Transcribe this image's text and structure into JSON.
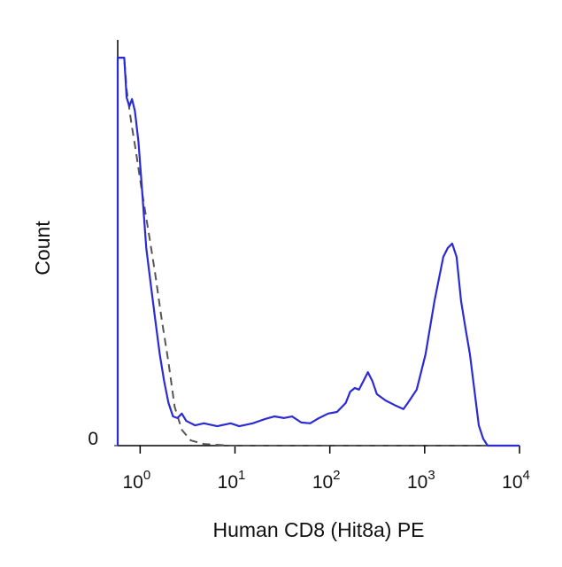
{
  "chart_data": {
    "type": "line",
    "xlabel": "Human CD8 (Hit8a) PE",
    "ylabel": "Count",
    "xscale": "log",
    "xlim": [
      0.58,
      10000
    ],
    "ylim": [
      0,
      100
    ],
    "xticks": [
      {
        "value": 1,
        "label": "10",
        "exponent": "0"
      },
      {
        "value": 10,
        "label": "10",
        "exponent": "1"
      },
      {
        "value": 100,
        "label": "10",
        "exponent": "2"
      },
      {
        "value": 1000,
        "label": "10",
        "exponent": "3"
      },
      {
        "value": 10000,
        "label": "10",
        "exponent": "4"
      }
    ],
    "yticks": [
      0
    ],
    "series": [
      {
        "color": "#2b2bd6",
        "dash": false,
        "x": [
          0.58,
          0.58,
          0.68,
          0.72,
          0.77,
          0.82,
          0.88,
          0.96,
          1.04,
          1.16,
          1.29,
          1.44,
          1.61,
          1.79,
          1.99,
          2.22,
          2.47,
          2.75,
          3.06,
          3.8,
          4.7,
          6.5,
          9.0,
          11.1,
          15.4,
          21,
          26,
          33,
          40,
          50,
          62,
          77,
          96,
          119,
          147,
          164,
          183,
          203,
          226,
          252,
          281,
          313,
          388,
          481,
          597,
          664,
          824,
          1021,
          1268,
          1571,
          1750,
          1950,
          2170,
          2420,
          2690,
          3000,
          3340,
          3720,
          4140,
          4610,
          10000
        ],
        "values": [
          0,
          95.6,
          95.6,
          85.8,
          83.6,
          85.4,
          82.5,
          74.9,
          64,
          48.7,
          40,
          31.2,
          22.5,
          15.9,
          10.5,
          7.2,
          6.8,
          7.9,
          6.1,
          5,
          5.5,
          4.8,
          5.5,
          4.8,
          5.5,
          6.6,
          7.2,
          6.8,
          7.2,
          5.7,
          5.5,
          6.8,
          7.9,
          8.3,
          10.5,
          13.3,
          14.2,
          13.8,
          15.9,
          18.1,
          15.9,
          12.7,
          11.1,
          10,
          9,
          10.5,
          13.8,
          22.5,
          35.6,
          46.5,
          48.7,
          49.8,
          46.5,
          35.6,
          29,
          22.5,
          13.8,
          5,
          1.7,
          0,
          0
        ]
      },
      {
        "color": "#555555",
        "dash": true,
        "x": [
          0.58,
          0.58,
          0.68,
          0.72,
          0.81,
          0.9,
          1.04,
          1.24,
          1.44,
          1.68,
          1.99,
          2.31,
          2.75,
          3.41,
          4.7,
          9.0,
          10000
        ],
        "values": [
          0,
          95.6,
          95.6,
          87.8,
          79.3,
          72.7,
          62.9,
          52,
          42.4,
          31.4,
          20.5,
          9.6,
          3.9,
          1.3,
          0.4,
          0,
          0
        ]
      }
    ]
  }
}
